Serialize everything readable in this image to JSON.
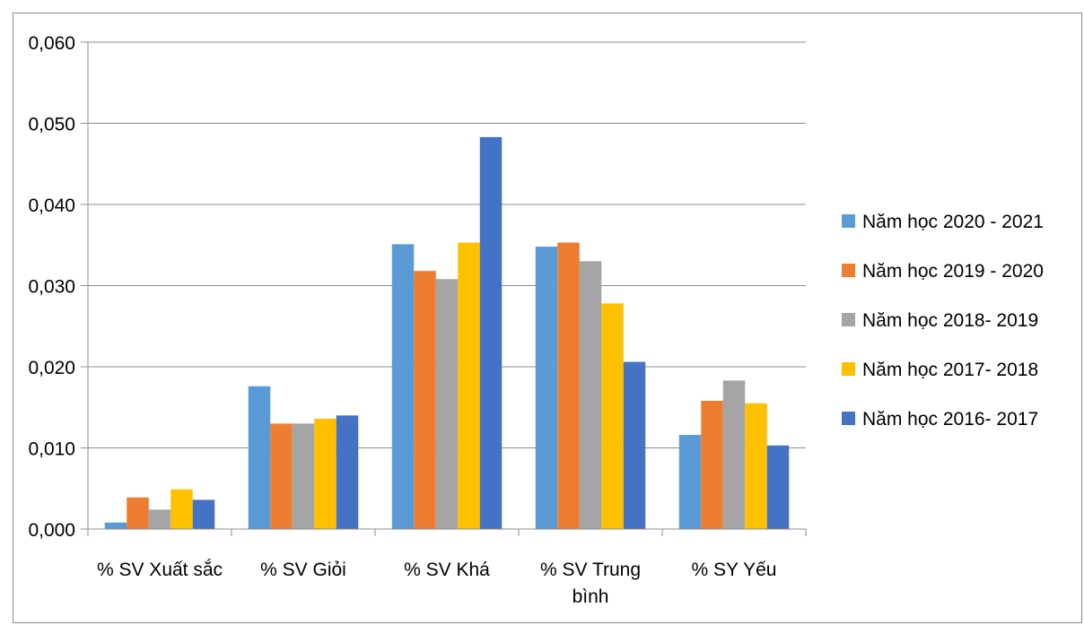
{
  "chart_data": {
    "type": "bar",
    "title": "",
    "xlabel": "",
    "ylabel": "",
    "categories": [
      [
        "% SV Xuất sắc"
      ],
      [
        "% SV Giỏi"
      ],
      [
        "% SV Khá"
      ],
      [
        "% SV Trung",
        "bình"
      ],
      [
        "% SY Yếu"
      ]
    ],
    "ylim": [
      0,
      0.06
    ],
    "yticks": [
      0,
      0.01,
      0.02,
      0.03,
      0.04,
      0.05,
      0.06
    ],
    "ytick_labels": [
      "0,000",
      "0,010",
      "0,020",
      "0,030",
      "0,040",
      "0,050",
      "0,060"
    ],
    "grid": true,
    "legend_position": "right",
    "series": [
      {
        "name": "Năm học 2020 - 2021",
        "color": "#5B9BD5",
        "values": [
          0.0008,
          0.0176,
          0.0351,
          0.0348,
          0.0116
        ]
      },
      {
        "name": "Năm học 2019 - 2020",
        "color": "#ED7D31",
        "values": [
          0.0039,
          0.013,
          0.0318,
          0.0353,
          0.0158
        ]
      },
      {
        "name": "Năm học 2018- 2019",
        "color": "#A5A5A5",
        "values": [
          0.0024,
          0.013,
          0.0308,
          0.033,
          0.0183
        ]
      },
      {
        "name": "Năm học 2017- 2018",
        "color": "#FFC000",
        "values": [
          0.0049,
          0.0136,
          0.0353,
          0.0278,
          0.0155
        ]
      },
      {
        "name": "Năm học 2016- 2017",
        "color": "#4472C4",
        "values": [
          0.0036,
          0.014,
          0.0483,
          0.0206,
          0.0103
        ]
      }
    ]
  }
}
